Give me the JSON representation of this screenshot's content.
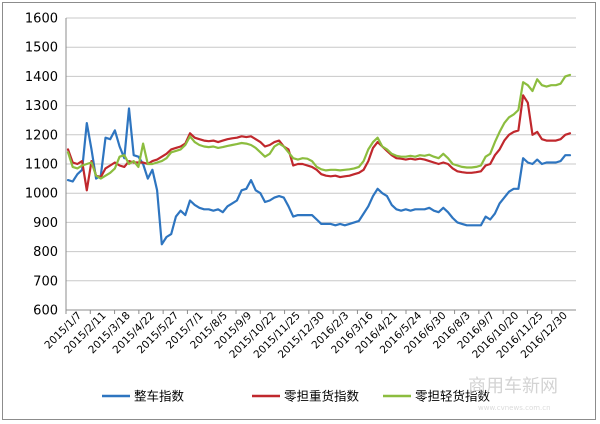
{
  "chart_data": {
    "type": "line",
    "title": "",
    "xlabel": "",
    "ylabel": "",
    "ylim": [
      600,
      1600
    ],
    "y_ticks": [
      600,
      700,
      800,
      900,
      1000,
      1100,
      1200,
      1300,
      1400,
      1500,
      1600
    ],
    "x_ticks": [
      "2015/1/7",
      "2015/2/11",
      "2015/3/18",
      "2015/4/22",
      "2015/5/27",
      "2015/7/1",
      "2015/8/5",
      "2015/9/9",
      "2015/10/22",
      "2015/11/25",
      "2015/12/30",
      "2016/2/3",
      "2016/3/16",
      "2016/4/21",
      "2016/5/24",
      "2016/6/30",
      "2016/8/3",
      "2016/9/7",
      "2016/10/20",
      "2016/11/25",
      "2016/12/30"
    ],
    "grid": "horizontal",
    "legend_position": "bottom",
    "series": [
      {
        "name": "整车指数",
        "color": "#2e75c0",
        "values": [
          1045,
          1040,
          1065,
          1080,
          1240,
          1150,
          1050,
          1060,
          1190,
          1185,
          1215,
          1160,
          1120,
          1290,
          1130,
          1125,
          1100,
          1050,
          1080,
          1010,
          825,
          850,
          860,
          920,
          940,
          925,
          975,
          960,
          950,
          945,
          945,
          940,
          945,
          935,
          955,
          965,
          975,
          1010,
          1015,
          1045,
          1010,
          1000,
          970,
          975,
          985,
          990,
          985,
          955,
          920,
          925,
          925,
          925,
          925,
          910,
          895,
          895,
          895,
          890,
          895,
          890,
          895,
          900,
          905,
          930,
          955,
          990,
          1015,
          1000,
          990,
          960,
          945,
          940,
          945,
          940,
          945,
          945,
          945,
          950,
          940,
          935,
          950,
          935,
          915,
          900,
          895,
          890,
          890,
          890,
          890,
          920,
          910,
          930,
          965,
          985,
          1005,
          1015,
          1015,
          1120,
          1105,
          1100,
          1115,
          1100,
          1105,
          1105,
          1105,
          1110,
          1130,
          1130
        ]
      },
      {
        "name": "零担重货指数",
        "color": "#c0282d",
        "values": [
          1150,
          1105,
          1100,
          1110,
          1010,
          1110,
          1060,
          1055,
          1085,
          1095,
          1105,
          1095,
          1090,
          1110,
          1105,
          1105,
          1105,
          1100,
          1110,
          1115,
          1125,
          1135,
          1150,
          1155,
          1160,
          1170,
          1205,
          1190,
          1185,
          1180,
          1178,
          1180,
          1175,
          1180,
          1185,
          1188,
          1190,
          1195,
          1192,
          1195,
          1185,
          1175,
          1160,
          1165,
          1175,
          1180,
          1160,
          1150,
          1095,
          1100,
          1100,
          1095,
          1090,
          1080,
          1065,
          1060,
          1058,
          1060,
          1055,
          1058,
          1060,
          1065,
          1070,
          1080,
          1110,
          1155,
          1175,
          1160,
          1145,
          1130,
          1120,
          1118,
          1115,
          1118,
          1115,
          1118,
          1115,
          1110,
          1105,
          1100,
          1105,
          1100,
          1085,
          1075,
          1072,
          1070,
          1070,
          1072,
          1075,
          1095,
          1100,
          1130,
          1150,
          1180,
          1200,
          1210,
          1215,
          1335,
          1310,
          1200,
          1210,
          1185,
          1180,
          1180,
          1180,
          1185,
          1200,
          1205
        ]
      },
      {
        "name": "零担轻货指数",
        "color": "#8cbd3f",
        "values": [
          1140,
          1090,
          1085,
          1095,
          1100,
          1105,
          1060,
          1050,
          1060,
          1070,
          1085,
          1125,
          1130,
          1100,
          1110,
          1090,
          1170,
          1100,
          1100,
          1105,
          1110,
          1120,
          1140,
          1145,
          1150,
          1165,
          1195,
          1175,
          1165,
          1160,
          1158,
          1160,
          1155,
          1158,
          1162,
          1165,
          1168,
          1172,
          1170,
          1165,
          1155,
          1140,
          1125,
          1135,
          1160,
          1170,
          1160,
          1140,
          1120,
          1115,
          1120,
          1118,
          1110,
          1090,
          1082,
          1078,
          1080,
          1080,
          1078,
          1080,
          1082,
          1085,
          1090,
          1110,
          1150,
          1175,
          1190,
          1160,
          1150,
          1135,
          1128,
          1125,
          1125,
          1128,
          1125,
          1130,
          1128,
          1132,
          1125,
          1120,
          1135,
          1120,
          1100,
          1095,
          1090,
          1088,
          1088,
          1090,
          1095,
          1125,
          1135,
          1175,
          1210,
          1240,
          1260,
          1270,
          1285,
          1380,
          1370,
          1350,
          1390,
          1370,
          1365,
          1370,
          1370,
          1375,
          1400,
          1405
        ]
      }
    ]
  },
  "watermark": {
    "text": "商用车新网",
    "url": "www.cvnews.com.cn"
  }
}
